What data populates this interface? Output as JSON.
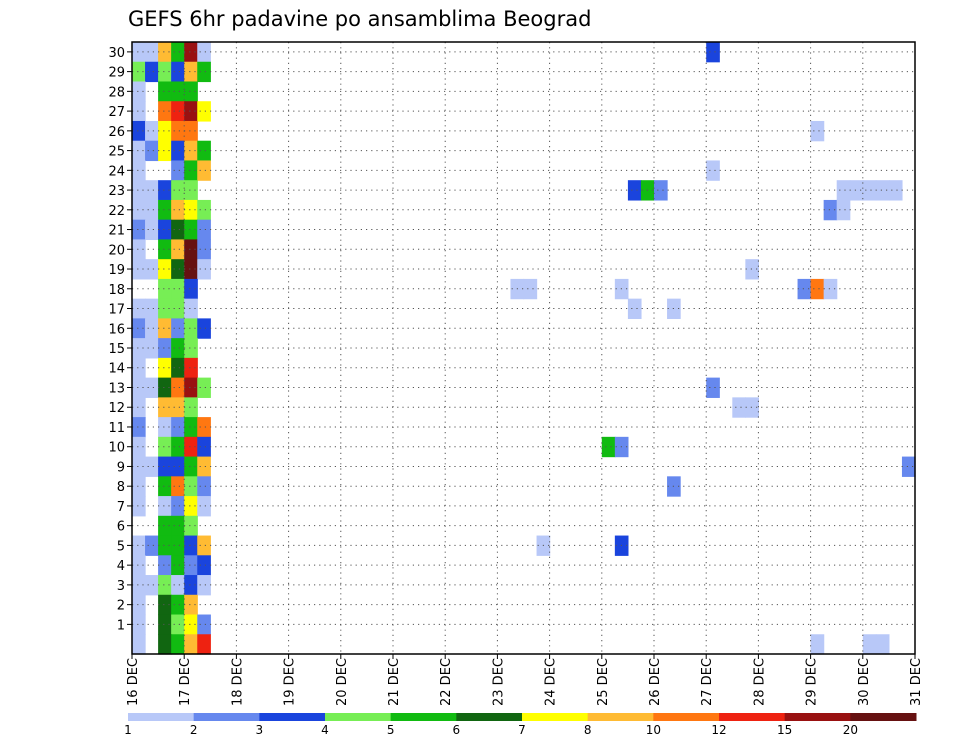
{
  "chart_data": {
    "type": "heatmap",
    "title": "GEFS 6hr padavine po ansamblima Beograd",
    "x_axis": {
      "tick_labels": [
        "16 DEC",
        "17 DEC",
        "18 DEC",
        "19 DEC",
        "20 DEC",
        "21 DEC",
        "22 DEC",
        "23 DEC",
        "24 DEC",
        "25 DEC",
        "26 DEC",
        "27 DEC",
        "28 DEC",
        "29 DEC",
        "30 DEC",
        "31 DEC"
      ],
      "range_days": [
        16,
        31
      ],
      "step_hours": 6
    },
    "y_axis": {
      "tick_labels": [
        "1",
        "2",
        "3",
        "4",
        "5",
        "6",
        "7",
        "8",
        "9",
        "10",
        "11",
        "12",
        "13",
        "14",
        "15",
        "16",
        "17",
        "18",
        "19",
        "20",
        "21",
        "22",
        "23",
        "24",
        "25",
        "26",
        "27",
        "28",
        "29",
        "30"
      ],
      "range": [
        0,
        30
      ]
    },
    "grid": "dotted",
    "colorbar": {
      "levels": [
        "1",
        "2",
        "3",
        "4",
        "5",
        "6",
        "7",
        "8",
        "10",
        "12",
        "15",
        "20"
      ],
      "colors": [
        "#b8c8f8",
        "#6688ee",
        "#1a44dd",
        "#77ee55",
        "#11bb11",
        "#116611",
        "#ffff00",
        "#ffbb33",
        "#ff7711",
        "#ee2211",
        "#991111",
        "#661111"
      ]
    },
    "series_note": "x index: 0 = 16 DEC 00z, step 6 h; row 0 = bottom row below member 1",
    "cells": [
      {
        "row": 30,
        "x": 0,
        "c": 0
      },
      {
        "row": 30,
        "x": 1,
        "c": 0
      },
      {
        "row": 30,
        "x": 2,
        "c": 7
      },
      {
        "row": 30,
        "x": 3,
        "c": 4
      },
      {
        "row": 30,
        "x": 4,
        "c": 10
      },
      {
        "row": 30,
        "x": 5,
        "c": 0
      },
      {
        "row": 30,
        "x": 44,
        "c": 2
      },
      {
        "row": 29,
        "x": 0,
        "c": 3
      },
      {
        "row": 29,
        "x": 1,
        "c": 2
      },
      {
        "row": 29,
        "x": 2,
        "c": 3
      },
      {
        "row": 29,
        "x": 3,
        "c": 2
      },
      {
        "row": 29,
        "x": 4,
        "c": 7
      },
      {
        "row": 29,
        "x": 5,
        "c": 4
      },
      {
        "row": 28,
        "x": 0,
        "c": 0
      },
      {
        "row": 28,
        "x": 2,
        "c": 4
      },
      {
        "row": 28,
        "x": 3,
        "c": 4
      },
      {
        "row": 28,
        "x": 4,
        "c": 4
      },
      {
        "row": 27,
        "x": 0,
        "c": 0
      },
      {
        "row": 27,
        "x": 2,
        "c": 8
      },
      {
        "row": 27,
        "x": 3,
        "c": 9
      },
      {
        "row": 27,
        "x": 4,
        "c": 10
      },
      {
        "row": 27,
        "x": 5,
        "c": 6
      },
      {
        "row": 26,
        "x": 0,
        "c": 2
      },
      {
        "row": 26,
        "x": 1,
        "c": 0
      },
      {
        "row": 26,
        "x": 2,
        "c": 6
      },
      {
        "row": 26,
        "x": 3,
        "c": 8
      },
      {
        "row": 26,
        "x": 4,
        "c": 8
      },
      {
        "row": 26,
        "x": 52,
        "c": 0
      },
      {
        "row": 25,
        "x": 0,
        "c": 0
      },
      {
        "row": 25,
        "x": 1,
        "c": 1
      },
      {
        "row": 25,
        "x": 2,
        "c": 6
      },
      {
        "row": 25,
        "x": 3,
        "c": 2
      },
      {
        "row": 25,
        "x": 4,
        "c": 7
      },
      {
        "row": 25,
        "x": 5,
        "c": 4
      },
      {
        "row": 24,
        "x": 0,
        "c": 0
      },
      {
        "row": 24,
        "x": 3,
        "c": 1
      },
      {
        "row": 24,
        "x": 4,
        "c": 4
      },
      {
        "row": 24,
        "x": 5,
        "c": 7
      },
      {
        "row": 24,
        "x": 44,
        "c": 0
      },
      {
        "row": 23,
        "x": 0,
        "c": 0
      },
      {
        "row": 23,
        "x": 1,
        "c": 0
      },
      {
        "row": 23,
        "x": 2,
        "c": 2
      },
      {
        "row": 23,
        "x": 3,
        "c": 3
      },
      {
        "row": 23,
        "x": 4,
        "c": 3
      },
      {
        "row": 23,
        "x": 38,
        "c": 2
      },
      {
        "row": 23,
        "x": 39,
        "c": 4
      },
      {
        "row": 23,
        "x": 40,
        "c": 1
      },
      {
        "row": 23,
        "x": 54,
        "c": 0
      },
      {
        "row": 23,
        "x": 55,
        "c": 0
      },
      {
        "row": 23,
        "x": 56,
        "c": 0
      },
      {
        "row": 23,
        "x": 57,
        "c": 0
      },
      {
        "row": 23,
        "x": 58,
        "c": 0
      },
      {
        "row": 22,
        "x": 0,
        "c": 0
      },
      {
        "row": 22,
        "x": 1,
        "c": 0
      },
      {
        "row": 22,
        "x": 2,
        "c": 4
      },
      {
        "row": 22,
        "x": 3,
        "c": 7
      },
      {
        "row": 22,
        "x": 4,
        "c": 6
      },
      {
        "row": 22,
        "x": 5,
        "c": 3
      },
      {
        "row": 22,
        "x": 53,
        "c": 1
      },
      {
        "row": 22,
        "x": 54,
        "c": 0
      },
      {
        "row": 21,
        "x": 0,
        "c": 1
      },
      {
        "row": 21,
        "x": 1,
        "c": 0
      },
      {
        "row": 21,
        "x": 2,
        "c": 2
      },
      {
        "row": 21,
        "x": 3,
        "c": 5
      },
      {
        "row": 21,
        "x": 4,
        "c": 4
      },
      {
        "row": 21,
        "x": 5,
        "c": 1
      },
      {
        "row": 20,
        "x": 0,
        "c": 0
      },
      {
        "row": 20,
        "x": 2,
        "c": 4
      },
      {
        "row": 20,
        "x": 3,
        "c": 7
      },
      {
        "row": 20,
        "x": 4,
        "c": 11
      },
      {
        "row": 20,
        "x": 5,
        "c": 1
      },
      {
        "row": 19,
        "x": 0,
        "c": 0
      },
      {
        "row": 19,
        "x": 1,
        "c": 0
      },
      {
        "row": 19,
        "x": 2,
        "c": 6
      },
      {
        "row": 19,
        "x": 3,
        "c": 5
      },
      {
        "row": 19,
        "x": 4,
        "c": 11
      },
      {
        "row": 19,
        "x": 5,
        "c": 0
      },
      {
        "row": 19,
        "x": 47,
        "c": 0
      },
      {
        "row": 18,
        "x": 2,
        "c": 3
      },
      {
        "row": 18,
        "x": 3,
        "c": 3
      },
      {
        "row": 18,
        "x": 4,
        "c": 2
      },
      {
        "row": 18,
        "x": 29,
        "c": 0
      },
      {
        "row": 18,
        "x": 30,
        "c": 0
      },
      {
        "row": 18,
        "x": 37,
        "c": 0
      },
      {
        "row": 18,
        "x": 51,
        "c": 1
      },
      {
        "row": 18,
        "x": 52,
        "c": 8
      },
      {
        "row": 18,
        "x": 53,
        "c": 0
      },
      {
        "row": 17,
        "x": 0,
        "c": 0
      },
      {
        "row": 17,
        "x": 1,
        "c": 0
      },
      {
        "row": 17,
        "x": 2,
        "c": 3
      },
      {
        "row": 17,
        "x": 3,
        "c": 3
      },
      {
        "row": 17,
        "x": 4,
        "c": 0
      },
      {
        "row": 17,
        "x": 38,
        "c": 0
      },
      {
        "row": 17,
        "x": 41,
        "c": 0
      },
      {
        "row": 16,
        "x": 0,
        "c": 1
      },
      {
        "row": 16,
        "x": 1,
        "c": 0
      },
      {
        "row": 16,
        "x": 2,
        "c": 7
      },
      {
        "row": 16,
        "x": 3,
        "c": 1
      },
      {
        "row": 16,
        "x": 4,
        "c": 3
      },
      {
        "row": 16,
        "x": 5,
        "c": 2
      },
      {
        "row": 15,
        "x": 0,
        "c": 0
      },
      {
        "row": 15,
        "x": 1,
        "c": 0
      },
      {
        "row": 15,
        "x": 2,
        "c": 1
      },
      {
        "row": 15,
        "x": 3,
        "c": 4
      },
      {
        "row": 15,
        "x": 4,
        "c": 3
      },
      {
        "row": 14,
        "x": 0,
        "c": 0
      },
      {
        "row": 14,
        "x": 2,
        "c": 6
      },
      {
        "row": 14,
        "x": 3,
        "c": 5
      },
      {
        "row": 14,
        "x": 4,
        "c": 9
      },
      {
        "row": 13,
        "x": 0,
        "c": 0
      },
      {
        "row": 13,
        "x": 1,
        "c": 0
      },
      {
        "row": 13,
        "x": 2,
        "c": 5
      },
      {
        "row": 13,
        "x": 3,
        "c": 8
      },
      {
        "row": 13,
        "x": 4,
        "c": 10
      },
      {
        "row": 13,
        "x": 5,
        "c": 3
      },
      {
        "row": 13,
        "x": 44,
        "c": 1
      },
      {
        "row": 12,
        "x": 0,
        "c": 0
      },
      {
        "row": 12,
        "x": 2,
        "c": 7
      },
      {
        "row": 12,
        "x": 3,
        "c": 7
      },
      {
        "row": 12,
        "x": 4,
        "c": 3
      },
      {
        "row": 12,
        "x": 46,
        "c": 0
      },
      {
        "row": 12,
        "x": 47,
        "c": 0
      },
      {
        "row": 11,
        "x": 0,
        "c": 1
      },
      {
        "row": 11,
        "x": 2,
        "c": 0
      },
      {
        "row": 11,
        "x": 3,
        "c": 1
      },
      {
        "row": 11,
        "x": 4,
        "c": 4
      },
      {
        "row": 11,
        "x": 5,
        "c": 8
      },
      {
        "row": 10,
        "x": 0,
        "c": 0
      },
      {
        "row": 10,
        "x": 2,
        "c": 3
      },
      {
        "row": 10,
        "x": 3,
        "c": 4
      },
      {
        "row": 10,
        "x": 4,
        "c": 9
      },
      {
        "row": 10,
        "x": 5,
        "c": 2
      },
      {
        "row": 10,
        "x": 36,
        "c": 4
      },
      {
        "row": 10,
        "x": 37,
        "c": 1
      },
      {
        "row": 9,
        "x": 0,
        "c": 0
      },
      {
        "row": 9,
        "x": 1,
        "c": 0
      },
      {
        "row": 9,
        "x": 2,
        "c": 2
      },
      {
        "row": 9,
        "x": 3,
        "c": 2
      },
      {
        "row": 9,
        "x": 4,
        "c": 4
      },
      {
        "row": 9,
        "x": 5,
        "c": 7
      },
      {
        "row": 9,
        "x": 59,
        "c": 1
      },
      {
        "row": 8,
        "x": 0,
        "c": 0
      },
      {
        "row": 8,
        "x": 2,
        "c": 4
      },
      {
        "row": 8,
        "x": 3,
        "c": 8
      },
      {
        "row": 8,
        "x": 4,
        "c": 3
      },
      {
        "row": 8,
        "x": 5,
        "c": 1
      },
      {
        "row": 8,
        "x": 41,
        "c": 1
      },
      {
        "row": 7,
        "x": 0,
        "c": 0
      },
      {
        "row": 7,
        "x": 2,
        "c": 0
      },
      {
        "row": 7,
        "x": 3,
        "c": 1
      },
      {
        "row": 7,
        "x": 4,
        "c": 6
      },
      {
        "row": 7,
        "x": 5,
        "c": 0
      },
      {
        "row": 6,
        "x": 2,
        "c": 4
      },
      {
        "row": 6,
        "x": 3,
        "c": 4
      },
      {
        "row": 6,
        "x": 4,
        "c": 3
      },
      {
        "row": 5,
        "x": 0,
        "c": 0
      },
      {
        "row": 5,
        "x": 1,
        "c": 1
      },
      {
        "row": 5,
        "x": 2,
        "c": 4
      },
      {
        "row": 5,
        "x": 3,
        "c": 4
      },
      {
        "row": 5,
        "x": 4,
        "c": 2
      },
      {
        "row": 5,
        "x": 5,
        "c": 7
      },
      {
        "row": 5,
        "x": 31,
        "c": 0
      },
      {
        "row": 5,
        "x": 37,
        "c": 2
      },
      {
        "row": 4,
        "x": 0,
        "c": 0
      },
      {
        "row": 4,
        "x": 2,
        "c": 1
      },
      {
        "row": 4,
        "x": 3,
        "c": 4
      },
      {
        "row": 4,
        "x": 4,
        "c": 1
      },
      {
        "row": 4,
        "x": 5,
        "c": 2
      },
      {
        "row": 3,
        "x": 0,
        "c": 0
      },
      {
        "row": 3,
        "x": 1,
        "c": 0
      },
      {
        "row": 3,
        "x": 2,
        "c": 3
      },
      {
        "row": 3,
        "x": 3,
        "c": 0
      },
      {
        "row": 3,
        "x": 4,
        "c": 2
      },
      {
        "row": 3,
        "x": 5,
        "c": 0
      },
      {
        "row": 2,
        "x": 0,
        "c": 0
      },
      {
        "row": 2,
        "x": 2,
        "c": 5
      },
      {
        "row": 2,
        "x": 3,
        "c": 4
      },
      {
        "row": 2,
        "x": 4,
        "c": 7
      },
      {
        "row": 1,
        "x": 0,
        "c": 0
      },
      {
        "row": 1,
        "x": 2,
        "c": 5
      },
      {
        "row": 1,
        "x": 3,
        "c": 3
      },
      {
        "row": 1,
        "x": 4,
        "c": 6
      },
      {
        "row": 1,
        "x": 5,
        "c": 1
      },
      {
        "row": 0,
        "x": 0,
        "c": 0
      },
      {
        "row": 0,
        "x": 2,
        "c": 5
      },
      {
        "row": 0,
        "x": 3,
        "c": 4
      },
      {
        "row": 0,
        "x": 4,
        "c": 7
      },
      {
        "row": 0,
        "x": 5,
        "c": 9
      },
      {
        "row": 0,
        "x": 52,
        "c": 0
      },
      {
        "row": 0,
        "x": 56,
        "c": 0
      },
      {
        "row": 0,
        "x": 57,
        "c": 0
      }
    ]
  }
}
